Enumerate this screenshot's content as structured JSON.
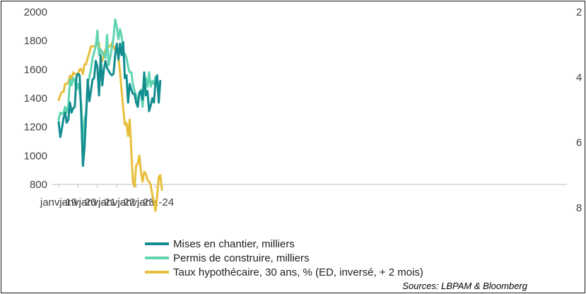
{
  "chart_data": {
    "type": "line",
    "x_tick_labels": [
      "janv.-19",
      "janv.-20",
      "janv.-21",
      "janv.-22",
      "janv.-23",
      "janv.-24"
    ],
    "x_start": "2019-01",
    "x_range": [
      "2019-01",
      "2024-03"
    ],
    "ylim_left": [
      800,
      2000
    ],
    "yticks_left": [
      800,
      1000,
      1200,
      1400,
      1600,
      1800,
      2000
    ],
    "ylim_right_inverted": [
      2,
      8
    ],
    "yticks_right": [
      2,
      4,
      6,
      8
    ],
    "right_axis_inverted": true,
    "grid": false,
    "legend_position": "bottom",
    "source": "Sources: LBPAM & Bloomberg",
    "series": [
      {
        "name": "Mises en chantier, milliers",
        "axis": "left",
        "color": "#138d90",
        "values": [
          1235,
          1130,
          1190,
          1260,
          1300,
          1230,
          1250,
          1370,
          1300,
          1330,
          1340,
          1550,
          1570,
          1560,
          1280,
          930,
          1050,
          1280,
          1530,
          1380,
          1450,
          1530,
          1540,
          1660,
          1620,
          1420,
          1700,
          1490,
          1600,
          1660,
          1610,
          1590,
          1570,
          1560,
          1570,
          1700,
          1780,
          1670,
          1780,
          1700,
          1790,
          1540,
          1560,
          1370,
          1500,
          1460,
          1430,
          1430,
          1370,
          1340,
          1440,
          1450,
          1390,
          1580,
          1420,
          1450,
          1310,
          1350,
          1400,
          1370,
          1510,
          1560,
          1370,
          1520
        ]
      },
      {
        "name": "Permis de construire, milliers",
        "axis": "left",
        "color": "#5fd4b0",
        "values": [
          1250,
          1300,
          1290,
          1300,
          1340,
          1300,
          1350,
          1530,
          1490,
          1540,
          1520,
          1460,
          1500,
          1450,
          1350,
          1050,
          1250,
          1300,
          1500,
          1550,
          1600,
          1680,
          1720,
          1760,
          1870,
          1700,
          1740,
          1720,
          1700,
          1680,
          1840,
          1630,
          1690,
          1750,
          1820,
          1950,
          1900,
          1810,
          1880,
          1830,
          1720,
          1710,
          1680,
          1620,
          1580,
          1580,
          1500,
          1450,
          1420,
          1380,
          1430,
          1460,
          1340,
          1470,
          1540,
          1480,
          1580,
          1480,
          1520,
          1500,
          1550,
          1490,
          1500,
          1520
        ]
      },
      {
        "name": "Taux hypothécaire, 30 ans, % (ED, inversé, + 2 mois)",
        "axis": "right",
        "color": "#e8bf3c",
        "values": [
          4.7,
          4.55,
          4.45,
          4.45,
          4.2,
          4.2,
          4.15,
          3.95,
          4.05,
          3.85,
          3.9,
          3.9,
          3.9,
          3.75,
          3.75,
          3.9,
          3.6,
          3.6,
          3.4,
          3.25,
          3.05,
          3.05,
          3.05,
          3.05,
          2.95,
          2.95,
          3.45,
          3.5,
          3.3,
          3.15,
          3.15,
          3.05,
          3.05,
          2.95,
          3.05,
          3.15,
          3.2,
          3.35,
          3.85,
          4.4,
          4.95,
          5.45,
          5.4,
          5.8,
          5.3,
          6.25,
          7.2,
          7.35,
          6.7,
          6.65,
          6.4,
          6.9,
          7.2,
          6.9,
          6.95,
          7.15,
          7.2,
          7.3,
          7.6,
          7.8,
          8.1,
          7.65,
          7.05,
          7.0,
          7.45
        ]
      }
    ]
  }
}
